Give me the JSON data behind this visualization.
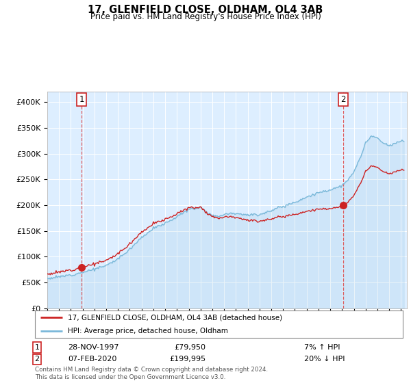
{
  "title": "17, GLENFIELD CLOSE, OLDHAM, OL4 3AB",
  "subtitle": "Price paid vs. HM Land Registry's House Price Index (HPI)",
  "ylabel_ticks": [
    "£0",
    "£50K",
    "£100K",
    "£150K",
    "£200K",
    "£250K",
    "£300K",
    "£350K",
    "£400K"
  ],
  "ytick_values": [
    0,
    50000,
    100000,
    150000,
    200000,
    250000,
    300000,
    350000,
    400000
  ],
  "ylim": [
    0,
    420000
  ],
  "xlim_start": 1995.0,
  "xlim_end": 2025.5,
  "sale1_year": 1997.91,
  "sale1_price": 79950,
  "sale1_label": "1",
  "sale1_date": "28-NOV-1997",
  "sale1_pct": "7% ↑ HPI",
  "sale2_year": 2020.09,
  "sale2_price": 199995,
  "sale2_label": "2",
  "sale2_date": "07-FEB-2020",
  "sale2_pct": "20% ↓ HPI",
  "legend_line1": "17, GLENFIELD CLOSE, OLDHAM, OL4 3AB (detached house)",
  "legend_line2": "HPI: Average price, detached house, Oldham",
  "footnote": "Contains HM Land Registry data © Crown copyright and database right 2024.\nThis data is licensed under the Open Government Licence v3.0.",
  "hpi_color": "#7ab8d9",
  "price_color": "#cc2222",
  "vline_color": "#dd4444",
  "background_color": "#ffffff",
  "plot_bg_color": "#ddeeff",
  "grid_color": "#ffffff",
  "hpi_anchors": {
    "1995.0": 58000,
    "1996.0": 61000,
    "1997.0": 65000,
    "1998.0": 70000,
    "1999.0": 76000,
    "2000.0": 83000,
    "2001.0": 96000,
    "2002.0": 115000,
    "2003.0": 138000,
    "2004.0": 155000,
    "2005.0": 165000,
    "2006.0": 178000,
    "2007.0": 192000,
    "2008.0": 196000,
    "2008.75": 183000,
    "2009.5": 178000,
    "2010.0": 183000,
    "2011.0": 185000,
    "2012.0": 181000,
    "2013.0": 182000,
    "2014.0": 190000,
    "2015.0": 198000,
    "2016.0": 206000,
    "2017.0": 216000,
    "2018.0": 224000,
    "2019.0": 230000,
    "2020.0": 238000,
    "2020.5": 248000,
    "2021.0": 265000,
    "2021.5": 290000,
    "2022.0": 320000,
    "2022.5": 335000,
    "2023.0": 330000,
    "2023.5": 320000,
    "2024.0": 315000,
    "2024.5": 320000,
    "2025.0": 325000
  },
  "noise_seed": 12,
  "noise_scale": 1200
}
